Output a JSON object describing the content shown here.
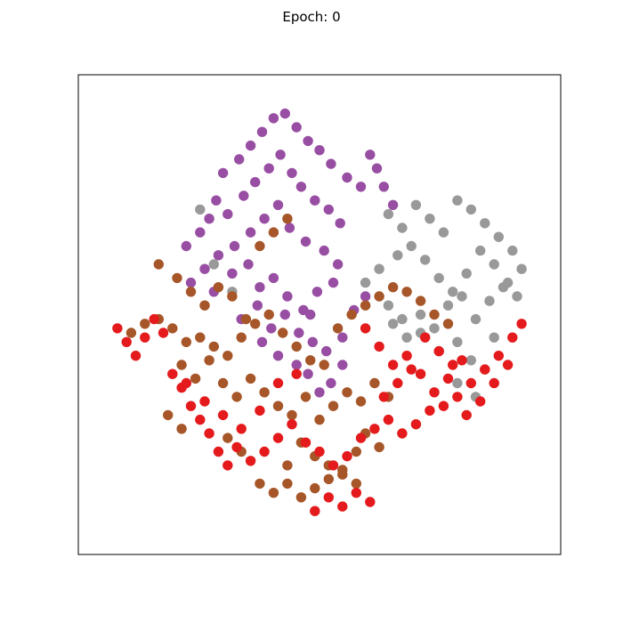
{
  "chart_data": {
    "type": "scatter",
    "title": "Epoch: 0",
    "xlabel": "",
    "ylabel": "",
    "xlim": [
      -1.05,
      1.05
    ],
    "ylim": [
      -1.05,
      1.05
    ],
    "ticks_visible": false,
    "grid": false,
    "legend": "none",
    "point_radius": 0.022,
    "series": [
      {
        "color": "#984ea3",
        "x": [
          -0.42,
          -0.35,
          -0.3,
          -0.25,
          -0.2,
          -0.15,
          -0.1,
          -0.05,
          0.0,
          0.05,
          0.12,
          0.18,
          0.22,
          -0.45,
          -0.48,
          -0.52,
          -0.4,
          -0.33,
          -0.28,
          -0.22,
          -0.17,
          -0.12,
          -0.08,
          -0.02,
          0.04,
          0.09,
          -0.37,
          -0.3,
          -0.24,
          -0.18,
          -0.13,
          -0.06,
          0.02,
          0.08,
          -0.44,
          -0.5,
          -0.56,
          -0.38,
          -0.31,
          -0.26,
          -0.2,
          -0.14,
          -0.07,
          -0.01,
          0.06,
          -0.34,
          -0.27,
          -0.21,
          -0.15,
          -0.09,
          -0.03,
          0.03,
          0.1,
          0.15,
          0.2,
          -0.05,
          0.0,
          0.05,
          0.1,
          0.25,
          0.28,
          0.32,
          -0.58,
          -0.46,
          -0.25,
          -0.18,
          -0.1,
          -0.04
        ],
        "y": [
          0.62,
          0.68,
          0.74,
          0.8,
          0.86,
          0.88,
          0.82,
          0.76,
          0.72,
          0.66,
          0.6,
          0.56,
          0.7,
          0.5,
          0.42,
          0.36,
          0.44,
          0.52,
          0.58,
          0.64,
          0.7,
          0.62,
          0.56,
          0.5,
          0.46,
          0.4,
          0.3,
          0.36,
          0.42,
          0.48,
          0.38,
          0.32,
          0.28,
          0.22,
          0.26,
          0.2,
          0.14,
          0.18,
          0.22,
          0.12,
          0.16,
          0.08,
          0.02,
          0.1,
          0.14,
          -0.02,
          0.04,
          -0.06,
          0.0,
          -0.08,
          -0.12,
          -0.16,
          -0.1,
          0.02,
          0.08,
          -0.26,
          -0.34,
          -0.3,
          -0.22,
          0.64,
          0.56,
          0.48,
          0.3,
          0.1,
          -0.12,
          -0.18,
          -0.22,
          0.0
        ]
      },
      {
        "color": "#999999",
        "x": [
          0.3,
          0.36,
          0.42,
          0.48,
          0.54,
          0.6,
          0.66,
          0.72,
          0.78,
          0.84,
          0.88,
          0.82,
          0.76,
          0.7,
          0.64,
          0.58,
          0.52,
          0.46,
          0.4,
          0.34,
          0.44,
          0.5,
          0.56,
          0.62,
          0.68,
          0.74,
          0.8,
          0.86,
          0.6,
          0.66,
          0.72,
          0.38,
          0.32,
          0.26,
          0.2,
          -0.52,
          -0.46,
          -0.38,
          0.3,
          0.36,
          0.44,
          0.52,
          0.6,
          0.68,
          0.76
        ],
        "y": [
          0.44,
          0.38,
          0.48,
          0.42,
          0.36,
          0.5,
          0.46,
          0.4,
          0.34,
          0.28,
          0.2,
          0.14,
          0.22,
          0.28,
          0.18,
          0.1,
          0.16,
          0.24,
          0.3,
          0.26,
          0.0,
          -0.06,
          0.04,
          0.08,
          -0.02,
          0.06,
          0.12,
          0.08,
          -0.12,
          -0.2,
          -0.24,
          -0.1,
          -0.04,
          0.2,
          0.14,
          0.46,
          0.22,
          0.1,
          0.04,
          -0.02,
          -0.08,
          -0.16,
          -0.3,
          -0.36,
          -0.1
        ]
      },
      {
        "color": "#a65628",
        "x": [
          -0.82,
          -0.76,
          -0.7,
          -0.64,
          -0.58,
          -0.52,
          -0.46,
          -0.4,
          -0.34,
          -0.28,
          -0.22,
          -0.16,
          -0.1,
          -0.04,
          0.02,
          0.08,
          0.14,
          0.2,
          0.26,
          0.32,
          0.38,
          0.44,
          0.5,
          0.56,
          -0.6,
          -0.54,
          -0.48,
          -0.42,
          -0.36,
          -0.3,
          -0.24,
          -0.18,
          -0.12,
          -0.06,
          0.0,
          0.06,
          0.12,
          0.18,
          0.24,
          0.3,
          -0.7,
          -0.62,
          -0.56,
          -0.5,
          -0.44,
          -0.38,
          -0.32,
          -0.26,
          -0.2,
          -0.14,
          -0.08,
          -0.02,
          0.04,
          0.1,
          0.16,
          -0.66,
          -0.6,
          -0.4,
          -0.34,
          -0.14,
          0.2,
          0.26,
          -0.26,
          -0.2,
          -0.14,
          -0.08,
          -0.02,
          0.04,
          0.1,
          0.16
        ],
        "y": [
          -0.08,
          -0.04,
          -0.02,
          -0.06,
          -0.12,
          -0.1,
          -0.14,
          -0.18,
          -0.1,
          -0.04,
          0.0,
          -0.08,
          -0.14,
          -0.2,
          -0.22,
          -0.06,
          0.0,
          0.04,
          0.08,
          0.12,
          0.1,
          0.06,
          0.0,
          -0.04,
          -0.22,
          -0.28,
          -0.2,
          -0.3,
          -0.36,
          -0.28,
          -0.34,
          -0.4,
          -0.44,
          -0.36,
          -0.46,
          -0.4,
          -0.34,
          -0.38,
          -0.3,
          -0.36,
          0.22,
          0.16,
          0.1,
          0.04,
          0.12,
          0.08,
          -0.02,
          0.3,
          0.36,
          0.42,
          -0.56,
          -0.62,
          -0.66,
          -0.7,
          -0.6,
          -0.44,
          -0.5,
          -0.54,
          -0.6,
          -0.66,
          -0.52,
          -0.58,
          -0.74,
          -0.78,
          -0.74,
          -0.8,
          -0.76,
          -0.72,
          -0.68,
          -0.74
        ]
      },
      {
        "color": "#e41a1c",
        "x": [
          -0.88,
          -0.84,
          -0.8,
          -0.76,
          -0.72,
          -0.68,
          -0.64,
          -0.6,
          -0.56,
          -0.52,
          -0.48,
          -0.44,
          -0.4,
          -0.36,
          -0.3,
          -0.24,
          -0.18,
          -0.12,
          -0.06,
          0.0,
          0.06,
          0.12,
          0.18,
          0.24,
          0.3,
          0.36,
          0.42,
          0.48,
          0.54,
          0.6,
          0.66,
          0.72,
          0.78,
          0.84,
          0.88,
          0.82,
          0.76,
          0.7,
          0.64,
          0.58,
          0.52,
          0.46,
          0.4,
          0.34,
          0.28,
          -0.02,
          0.04,
          0.1,
          0.16,
          0.22,
          -0.58,
          -0.5,
          -0.42,
          -0.34,
          -0.26,
          -0.18,
          -0.1,
          0.2,
          0.26,
          0.32,
          0.38,
          0.44,
          0.5,
          0.56,
          0.62
        ],
        "y": [
          -0.06,
          -0.12,
          -0.18,
          -0.1,
          -0.02,
          -0.08,
          -0.26,
          -0.32,
          -0.4,
          -0.46,
          -0.52,
          -0.6,
          -0.66,
          -0.58,
          -0.64,
          -0.6,
          -0.54,
          -0.48,
          -0.56,
          -0.6,
          -0.66,
          -0.62,
          -0.54,
          -0.5,
          -0.46,
          -0.52,
          -0.48,
          -0.42,
          -0.4,
          -0.36,
          -0.3,
          -0.24,
          -0.18,
          -0.1,
          -0.04,
          -0.22,
          -0.3,
          -0.38,
          -0.44,
          -0.22,
          -0.16,
          -0.1,
          -0.24,
          -0.3,
          -0.36,
          -0.86,
          -0.8,
          -0.84,
          -0.78,
          -0.82,
          -0.3,
          -0.38,
          -0.44,
          -0.5,
          -0.42,
          -0.3,
          -0.26,
          -0.06,
          -0.14,
          -0.22,
          -0.18,
          -0.26,
          -0.34,
          -0.28,
          -0.2
        ]
      }
    ]
  }
}
